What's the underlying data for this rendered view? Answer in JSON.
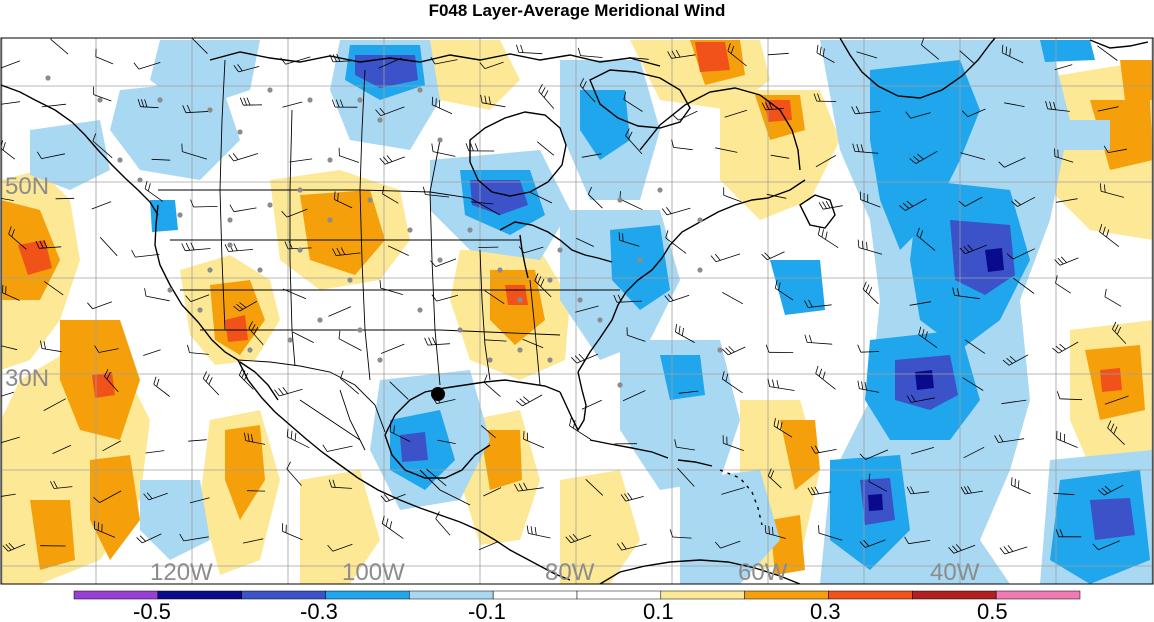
{
  "title": "F048 Layer-Average Meridional Wind",
  "longitude_labels": [
    "120W",
    "100W",
    "80W",
    "60W",
    "40W"
  ],
  "latitude_labels": [
    "50N",
    "30N"
  ],
  "colorbar": {
    "levels": [
      "-0.5",
      "-0.3",
      "-0.1",
      "0.1",
      "0.3",
      "0.5"
    ],
    "colors": [
      "#9a3fd6",
      "#0a0a8c",
      "#3b52c9",
      "#1fa6ec",
      "#a8d8f2",
      "#ffffff",
      "#ffffff",
      "#fde895",
      "#f5a00a",
      "#f0521a",
      "#b11f1f",
      "#f07ab4"
    ]
  },
  "map": {
    "land_color": "#ffffff",
    "grid_color": "#a0a0a0",
    "coastline_color": "#000000",
    "station_marker_color": "#8c8c8c",
    "highlight_marker_color": "#000000"
  },
  "chart_data": {
    "type": "heatmap",
    "title": "F048 Layer-Average Meridional Wind",
    "xlabel": "",
    "ylabel": "",
    "x_ticks": [
      "120W",
      "100W",
      "80W",
      "60W",
      "40W"
    ],
    "y_ticks": [
      "50N",
      "30N"
    ],
    "levels": [
      -0.5,
      -0.3,
      -0.1,
      0.1,
      0.3,
      0.5
    ],
    "grid": true
  }
}
